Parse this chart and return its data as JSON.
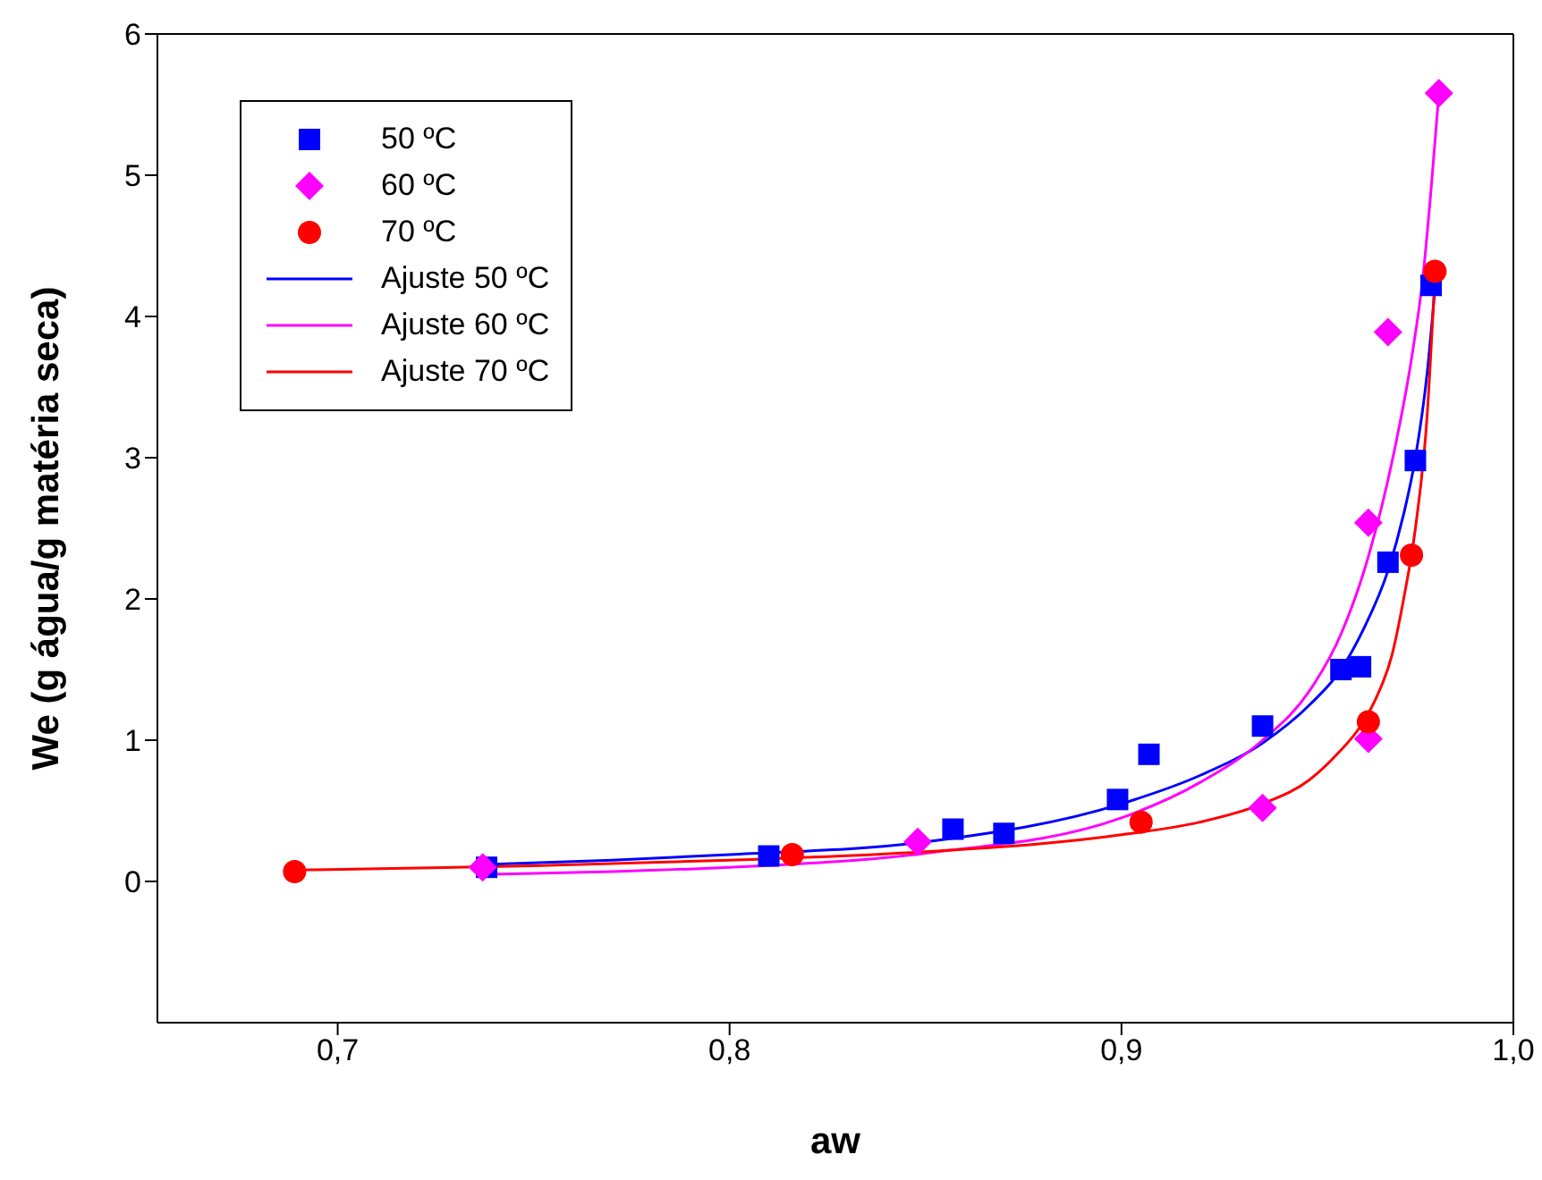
{
  "chart_data": {
    "type": "scatter",
    "xlabel": "aw",
    "ylabel": "We (g água/g matéria seca)",
    "xlim": [
      0.654,
      1.0
    ],
    "ylim": [
      -1,
      6
    ],
    "xticks": [
      {
        "value": 0.7,
        "label": "0,7"
      },
      {
        "value": 0.8,
        "label": "0,8"
      },
      {
        "value": 0.9,
        "label": "0,9"
      },
      {
        "value": 1.0,
        "label": "1,0"
      }
    ],
    "yticks": [
      0,
      1,
      2,
      3,
      4,
      5,
      6
    ],
    "legend": "top left",
    "series": [
      {
        "name": "50 ºC",
        "marker": "square",
        "color": "#0000ff",
        "x": [
          0.738,
          0.81,
          0.857,
          0.87,
          0.899,
          0.907,
          0.936,
          0.956,
          0.961,
          0.968,
          0.975,
          0.979
        ],
        "values": [
          0.1,
          0.18,
          0.37,
          0.34,
          0.58,
          0.9,
          1.1,
          1.5,
          1.52,
          2.26,
          2.98,
          4.22
        ]
      },
      {
        "name": "60 ºC",
        "marker": "diamond",
        "color": "#ff00ff",
        "x": [
          0.737,
          0.848,
          0.936,
          0.963,
          0.963,
          0.968,
          0.981
        ],
        "values": [
          0.1,
          0.28,
          0.52,
          1.01,
          2.54,
          3.89,
          5.58
        ]
      },
      {
        "name": "70 ºC",
        "marker": "circle",
        "color": "#ff0000",
        "x": [
          0.689,
          0.816,
          0.905,
          0.963,
          0.974,
          0.98
        ],
        "values": [
          0.07,
          0.19,
          0.42,
          1.13,
          2.31,
          4.32
        ]
      },
      {
        "name": "Ajuste 50 ºC",
        "type": "line",
        "marker": "none",
        "color": "#0000ff",
        "x": [
          0.738,
          0.77,
          0.8,
          0.85,
          0.9,
          0.92,
          0.936,
          0.948,
          0.956,
          0.962,
          0.968,
          0.972,
          0.975,
          0.978,
          0.98
        ],
        "values": [
          0.12,
          0.15,
          0.19,
          0.28,
          0.55,
          0.75,
          0.98,
          1.25,
          1.5,
          1.8,
          2.2,
          2.6,
          3.0,
          3.6,
          4.2
        ]
      },
      {
        "name": "Ajuste 60 ºC",
        "type": "line",
        "marker": "none",
        "color": "#ff00ff",
        "x": [
          0.737,
          0.77,
          0.8,
          0.85,
          0.9,
          0.92,
          0.936,
          0.948,
          0.956,
          0.963,
          0.97,
          0.974,
          0.977,
          0.979,
          0.981
        ],
        "values": [
          0.05,
          0.07,
          0.1,
          0.2,
          0.45,
          0.7,
          1.0,
          1.35,
          1.75,
          2.3,
          3.1,
          3.7,
          4.3,
          4.9,
          5.58
        ]
      },
      {
        "name": "Ajuste 70 ºC",
        "type": "line",
        "marker": "none",
        "color": "#ff0000",
        "x": [
          0.689,
          0.75,
          0.8,
          0.85,
          0.9,
          0.92,
          0.936,
          0.948,
          0.955,
          0.961,
          0.965,
          0.969,
          0.972,
          0.975,
          0.978,
          0.98
        ],
        "values": [
          0.08,
          0.11,
          0.15,
          0.21,
          0.33,
          0.42,
          0.55,
          0.72,
          0.9,
          1.1,
          1.3,
          1.6,
          2.0,
          2.5,
          3.3,
          4.3
        ]
      }
    ]
  }
}
